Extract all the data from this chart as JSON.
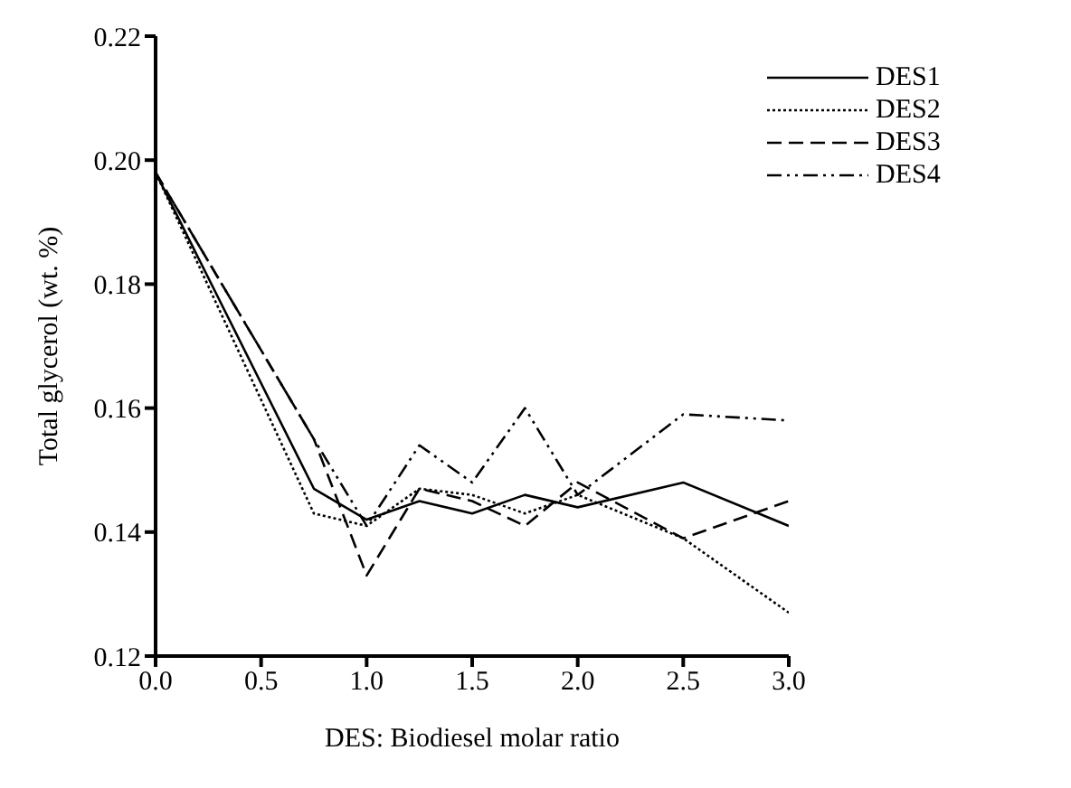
{
  "chart_data": {
    "type": "line",
    "xlabel": "DES: Biodiesel molar ratio",
    "ylabel": "Total glycerol (wt. %)",
    "x": [
      0,
      0.75,
      1.0,
      1.25,
      1.5,
      1.75,
      2.0,
      2.5,
      3.0
    ],
    "series": [
      {
        "name": "DES1",
        "color": "#000000",
        "line_style": "solid",
        "values": [
          0.198,
          0.147,
          0.142,
          0.145,
          0.143,
          0.146,
          0.144,
          0.148,
          0.141
        ]
      },
      {
        "name": "DES2",
        "color": "#000000",
        "line_style": "dotted",
        "values": [
          0.198,
          0.143,
          0.141,
          0.147,
          0.146,
          0.143,
          0.146,
          0.139,
          0.127
        ]
      },
      {
        "name": "DES3",
        "color": "#000000",
        "line_style": "dashed",
        "values": [
          0.198,
          0.155,
          0.133,
          0.147,
          0.145,
          0.141,
          0.148,
          0.139,
          0.145
        ]
      },
      {
        "name": "DES4",
        "color": "#000000",
        "line_style": "dashdotdot",
        "values": [
          0.198,
          0.155,
          0.141,
          0.154,
          0.148,
          0.16,
          0.146,
          0.159,
          0.158
        ]
      }
    ],
    "xlim": [
      0,
      3
    ],
    "xticks": [
      {
        "value": 0,
        "label": "0.0"
      },
      {
        "value": 0.5,
        "label": "0.5"
      },
      {
        "value": 1,
        "label": "1.0"
      },
      {
        "value": 1.5,
        "label": "1.5"
      },
      {
        "value": 2,
        "label": "2.0"
      },
      {
        "value": 2.5,
        "label": "2.5"
      },
      {
        "value": 3,
        "label": "3.0"
      }
    ],
    "ylim": [
      0.12,
      0.22
    ],
    "yticks": [
      {
        "value": 0.12,
        "label": "0.12"
      },
      {
        "value": 0.14,
        "label": "0.14"
      },
      {
        "value": 0.16,
        "label": "0.16"
      },
      {
        "value": 0.18,
        "label": "0.18"
      },
      {
        "value": 0.2,
        "label": "0.20"
      },
      {
        "value": 0.22,
        "label": "0.22"
      }
    ],
    "grid": false,
    "legend": "top right",
    "marker": "none"
  }
}
